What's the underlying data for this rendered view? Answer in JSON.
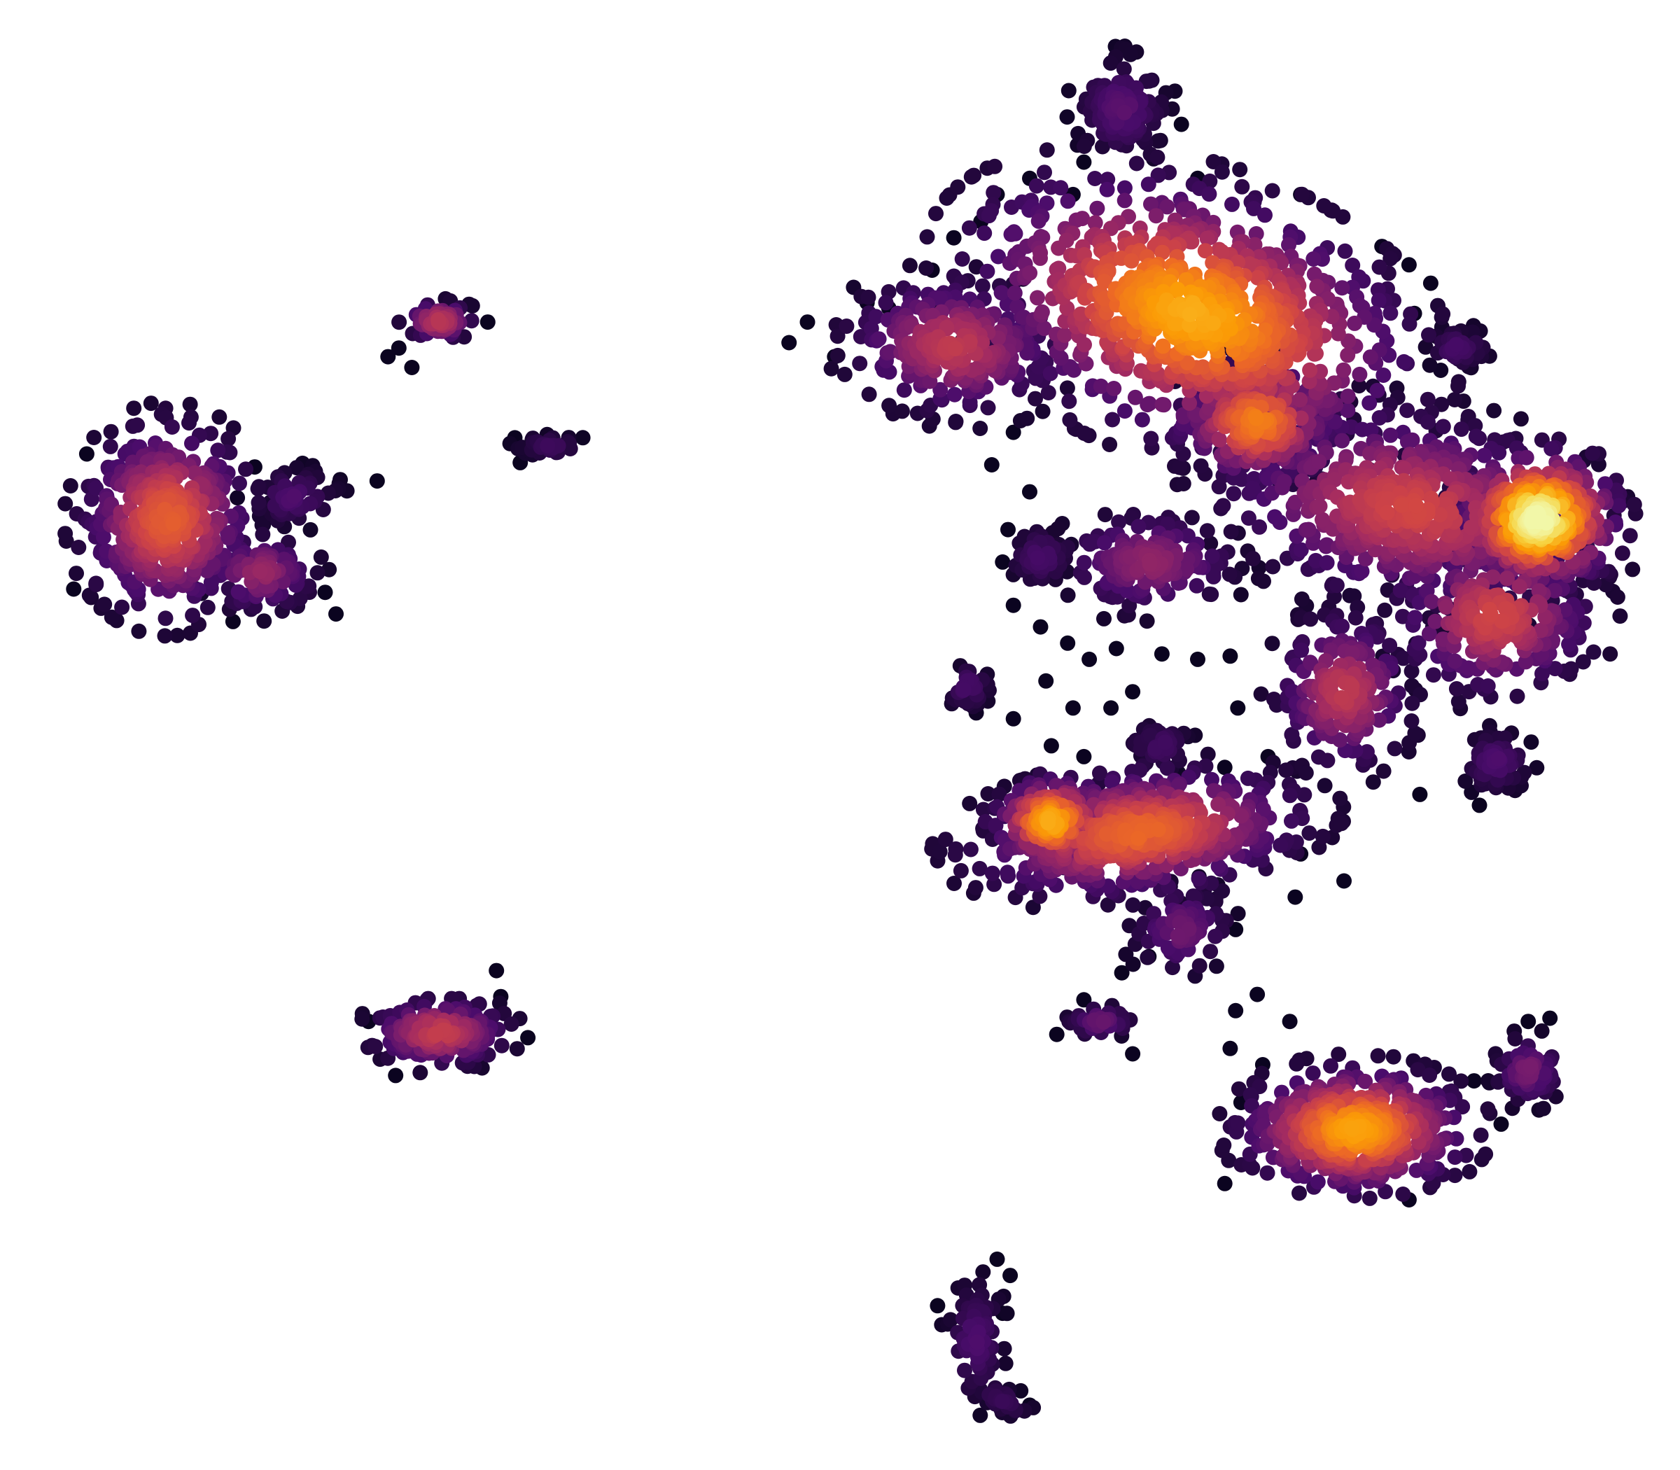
{
  "chart_data": {
    "type": "scatter",
    "title": "",
    "xlabel": "",
    "ylabel": "",
    "axes_visible": false,
    "grid": false,
    "legend": "none",
    "xlim": [
      0,
      1550
    ],
    "ylim": [
      1360,
      0
    ],
    "color_encoding": "point density",
    "colormap": [
      "#0b0420",
      "#2a0845",
      "#4a0c6b",
      "#781c6d",
      "#a52c60",
      "#cf4446",
      "#ed6925",
      "#fb9b06",
      "#f7d13d",
      "#f2f7a8"
    ],
    "clusters": [
      {
        "id": "c1",
        "cx": 1100,
        "cy": 290,
        "rx": 200,
        "ry": 110,
        "rot": 18,
        "n": 900,
        "peak": 0.8
      },
      {
        "id": "c2",
        "cx": 880,
        "cy": 320,
        "rx": 95,
        "ry": 60,
        "rot": 5,
        "n": 260,
        "peak": 0.5
      },
      {
        "id": "c3",
        "cx": 1160,
        "cy": 390,
        "rx": 70,
        "ry": 55,
        "rot": 0,
        "n": 220,
        "peak": 0.7
      },
      {
        "id": "c4",
        "cx": 1300,
        "cy": 470,
        "rx": 170,
        "ry": 85,
        "rot": 10,
        "n": 600,
        "peak": 0.55
      },
      {
        "id": "c5",
        "cx": 1420,
        "cy": 480,
        "rx": 70,
        "ry": 60,
        "rot": 0,
        "n": 380,
        "peak": 1.0
      },
      {
        "id": "c6",
        "cx": 1380,
        "cy": 570,
        "rx": 90,
        "ry": 70,
        "rot": 0,
        "n": 250,
        "peak": 0.55
      },
      {
        "id": "c7",
        "cx": 1035,
        "cy": 100,
        "rx": 40,
        "ry": 45,
        "rot": 0,
        "n": 120,
        "peak": 0.25
      },
      {
        "id": "c8",
        "cx": 1060,
        "cy": 520,
        "rx": 80,
        "ry": 45,
        "rot": 0,
        "n": 160,
        "peak": 0.38
      },
      {
        "id": "c9",
        "cx": 1240,
        "cy": 640,
        "rx": 60,
        "ry": 70,
        "rot": 0,
        "n": 200,
        "peak": 0.5
      },
      {
        "id": "c10",
        "cx": 1050,
        "cy": 770,
        "rx": 150,
        "ry": 55,
        "rot": -6,
        "n": 520,
        "peak": 0.65
      },
      {
        "id": "c11",
        "cx": 970,
        "cy": 760,
        "rx": 50,
        "ry": 40,
        "rot": 0,
        "n": 160,
        "peak": 0.8
      },
      {
        "id": "c12",
        "cx": 1090,
        "cy": 860,
        "rx": 45,
        "ry": 40,
        "rot": 0,
        "n": 80,
        "peak": 0.3
      },
      {
        "id": "c13",
        "cx": 1070,
        "cy": 690,
        "rx": 30,
        "ry": 22,
        "rot": 0,
        "n": 45,
        "peak": 0.18
      },
      {
        "id": "c14",
        "cx": 1250,
        "cy": 1045,
        "rx": 100,
        "ry": 55,
        "rot": 0,
        "n": 480,
        "peak": 0.78
      },
      {
        "id": "c15",
        "cx": 1410,
        "cy": 990,
        "rx": 30,
        "ry": 30,
        "rot": 0,
        "n": 70,
        "peak": 0.32
      },
      {
        "id": "c16",
        "cx": 1380,
        "cy": 705,
        "rx": 30,
        "ry": 28,
        "rot": 0,
        "n": 55,
        "peak": 0.22
      },
      {
        "id": "c17",
        "cx": 1345,
        "cy": 322,
        "rx": 28,
        "ry": 18,
        "rot": 0,
        "n": 40,
        "peak": 0.2
      },
      {
        "id": "c18",
        "cx": 960,
        "cy": 515,
        "rx": 28,
        "ry": 28,
        "rot": 0,
        "n": 40,
        "peak": 0.2
      },
      {
        "id": "c19",
        "cx": 893,
        "cy": 635,
        "rx": 22,
        "ry": 20,
        "rot": 0,
        "n": 35,
        "peak": 0.2
      },
      {
        "id": "c20",
        "cx": 1015,
        "cy": 945,
        "rx": 30,
        "ry": 15,
        "rot": 0,
        "n": 35,
        "peak": 0.28
      },
      {
        "id": "c21",
        "cx": 155,
        "cy": 480,
        "rx": 75,
        "ry": 85,
        "rot": 0,
        "n": 420,
        "peak": 0.62
      },
      {
        "id": "c22",
        "cx": 240,
        "cy": 530,
        "rx": 50,
        "ry": 35,
        "rot": 0,
        "n": 110,
        "peak": 0.4
      },
      {
        "id": "c23",
        "cx": 270,
        "cy": 460,
        "rx": 40,
        "ry": 25,
        "rot": 0,
        "n": 60,
        "peak": 0.22
      },
      {
        "id": "c24",
        "cx": 405,
        "cy": 955,
        "rx": 62,
        "ry": 30,
        "rot": 0,
        "n": 170,
        "peak": 0.52
      },
      {
        "id": "c25",
        "cx": 405,
        "cy": 297,
        "rx": 32,
        "ry": 17,
        "rot": 0,
        "n": 55,
        "peak": 0.48
      },
      {
        "id": "c26",
        "cx": 508,
        "cy": 413,
        "rx": 30,
        "ry": 10,
        "rot": 0,
        "n": 35,
        "peak": 0.16
      },
      {
        "id": "c27",
        "cx": 900,
        "cy": 1240,
        "rx": 25,
        "ry": 55,
        "rot": 0,
        "n": 70,
        "peak": 0.22
      },
      {
        "id": "c28",
        "cx": 925,
        "cy": 1295,
        "rx": 30,
        "ry": 12,
        "rot": 25,
        "n": 30,
        "peak": 0.15
      }
    ],
    "outliers": [
      [
        728,
        317
      ],
      [
        745,
        298
      ],
      [
        770,
        330
      ],
      [
        800,
        280
      ],
      [
        820,
        285
      ],
      [
        860,
        250
      ],
      [
        880,
        220
      ],
      [
        905,
        205
      ],
      [
        920,
        180
      ],
      [
        950,
        165
      ],
      [
        990,
        180
      ],
      [
        1000,
        150
      ],
      [
        1090,
        115
      ],
      [
        1105,
        165
      ],
      [
        1200,
        180
      ],
      [
        1275,
        228
      ],
      [
        1300,
        245
      ],
      [
        1320,
        262
      ],
      [
        1305,
        290
      ],
      [
        935,
        400
      ],
      [
        915,
        430
      ],
      [
        950,
        455
      ],
      [
        930,
        490
      ],
      [
        925,
        520
      ],
      [
        935,
        560
      ],
      [
        960,
        580
      ],
      [
        985,
        595
      ],
      [
        1005,
        610
      ],
      [
        1030,
        600
      ],
      [
        965,
        630
      ],
      [
        990,
        655
      ],
      [
        1045,
        640
      ],
      [
        1025,
        655
      ],
      [
        935,
        665
      ],
      [
        970,
        690
      ],
      [
        1000,
        700
      ],
      [
        1072,
        605
      ],
      [
        1105,
        610
      ],
      [
        1135,
        607
      ],
      [
        1142,
        655
      ],
      [
        1130,
        710
      ],
      [
        1170,
        700
      ],
      [
        1160,
        770
      ],
      [
        1200,
        790
      ],
      [
        1195,
        830
      ],
      [
        1240,
        815
      ],
      [
        1100,
        860
      ],
      [
        1140,
        860
      ],
      [
        1060,
        885
      ],
      [
        1035,
        900
      ],
      [
        1140,
        935
      ],
      [
        1160,
        920
      ],
      [
        1190,
        945
      ],
      [
        1135,
        970
      ],
      [
        1165,
        985
      ],
      [
        1145,
        1020
      ],
      [
        1140,
        1045
      ],
      [
        975,
        957
      ],
      [
        1045,
        975
      ],
      [
        1410,
        945
      ],
      [
        1430,
        942
      ],
      [
        1360,
        1000
      ],
      [
        1385,
        1040
      ],
      [
        1365,
        745
      ],
      [
        1310,
        735
      ],
      [
        1000,
        925
      ],
      [
        1130,
        1095
      ],
      [
        1300,
        1110
      ],
      [
        310,
        568
      ],
      [
        300,
        548
      ],
      [
        348,
        445
      ],
      [
        260,
        440
      ],
      [
        235,
        432
      ],
      [
        80,
        420
      ],
      [
        68,
        545
      ],
      [
        215,
        575
      ],
      [
        380,
        340
      ],
      [
        358,
        330
      ],
      [
        368,
        322
      ],
      [
        450,
        298
      ],
      [
        475,
        405
      ],
      [
        480,
        428
      ],
      [
        458,
        898
      ],
      [
        462,
        922
      ],
      [
        487,
        960
      ],
      [
        365,
        995
      ],
      [
        340,
        945
      ],
      [
        920,
        1165
      ],
      [
        932,
        1180
      ],
      [
        925,
        1215
      ],
      [
        905,
        1250
      ],
      [
        865,
        1208
      ],
      [
        950,
        1300
      ]
    ]
  }
}
